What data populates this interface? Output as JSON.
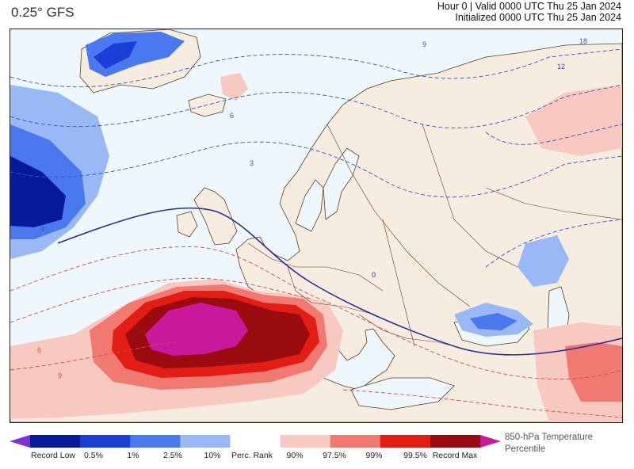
{
  "header": {
    "model": "0.25° GFS",
    "valid_line": "Hour 0 | Valid 0000 UTC Thu 25 Jan 2024",
    "init_line": "Initialized 0000 UTC Thu 25 Jan 2024"
  },
  "map": {
    "variable": "850-hPa Temperature Percentile",
    "contour_labels": [
      "18",
      "12",
      "9",
      "6",
      "3",
      "3",
      "0",
      "6",
      "9"
    ]
  },
  "legend": {
    "title_line1": "850-hPa Temperature",
    "title_line2": "Percentile",
    "bins": [
      {
        "color": "#7b2fd6"
      },
      {
        "color": "#081a9c"
      },
      {
        "color": "#1b3fd6"
      },
      {
        "color": "#4a78ee"
      },
      {
        "color": "#9ab8f5"
      },
      {
        "color": "#ffffff"
      },
      {
        "color": "#f8c9c0"
      },
      {
        "color": "#f07a72"
      },
      {
        "color": "#e41d14"
      },
      {
        "color": "#9a0c10"
      },
      {
        "color": "#c8189c"
      }
    ],
    "labels": [
      "Record Low",
      "0.5%",
      "1%",
      "2.5%",
      "10%",
      "Perc. Rank",
      "90%",
      "97.5%",
      "99%",
      "99.5%",
      "Record Max"
    ]
  },
  "colors": {
    "ocean": "#eef7fb",
    "land": "#f6ece0",
    "border": "#5a3d22",
    "contour_cold": "#3b4fc4",
    "contour_warm": "#d24a50",
    "zero_line": "#2a2f9a"
  }
}
